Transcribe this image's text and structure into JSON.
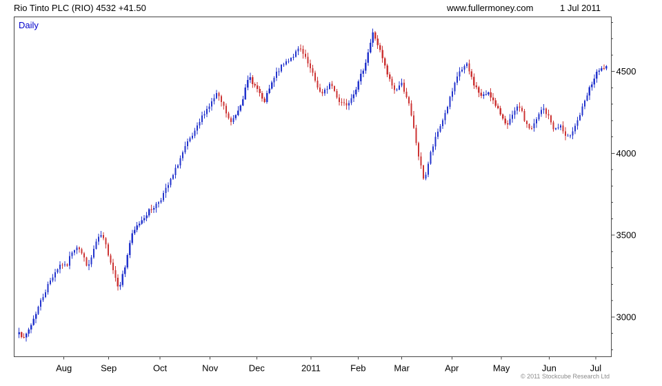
{
  "header": {
    "title": "Rio Tinto PLC (RIO) 4532 +41.50",
    "website": "www.fullermoney.com",
    "date": "1 Jul 2011"
  },
  "chart": {
    "timeframe_label": "Daily",
    "copyright": "© 2011 Stockcube Research Ltd"
  },
  "chart_data": {
    "type": "candlestick",
    "title": "Rio Tinto PLC (RIO) 4532 +41.50",
    "timeframe": "Daily",
    "last_price": 4532,
    "change": "+41.50",
    "grid": false,
    "legend": false,
    "ylim": [
      2780,
      4810
    ],
    "y_ticks": [
      3000,
      3500,
      4000,
      4500
    ],
    "y_minor_step": 100,
    "x_ticks": [
      {
        "label": "Aug",
        "t": 0.078
      },
      {
        "label": "Sep",
        "t": 0.154
      },
      {
        "label": "Oct",
        "t": 0.241
      },
      {
        "label": "Nov",
        "t": 0.326
      },
      {
        "label": "Dec",
        "t": 0.405
      },
      {
        "label": "2011",
        "t": 0.497
      },
      {
        "label": "Feb",
        "t": 0.577
      },
      {
        "label": "Mar",
        "t": 0.651
      },
      {
        "label": "Apr",
        "t": 0.736
      },
      {
        "label": "May",
        "t": 0.82
      },
      {
        "label": "Jun",
        "t": 0.901
      },
      {
        "label": "Jul",
        "t": 0.98
      }
    ],
    "colors": {
      "up": "#2233cc",
      "down": "#cc3333",
      "axis": "#444444"
    },
    "num_candles": 245,
    "price_path_anchors": [
      [
        0.0,
        2920
      ],
      [
        0.008,
        2860
      ],
      [
        0.02,
        2950
      ],
      [
        0.035,
        3080
      ],
      [
        0.05,
        3200
      ],
      [
        0.062,
        3280
      ],
      [
        0.072,
        3330
      ],
      [
        0.08,
        3300
      ],
      [
        0.09,
        3400
      ],
      [
        0.1,
        3440
      ],
      [
        0.11,
        3360
      ],
      [
        0.118,
        3300
      ],
      [
        0.13,
        3450
      ],
      [
        0.14,
        3500
      ],
      [
        0.148,
        3430
      ],
      [
        0.155,
        3350
      ],
      [
        0.163,
        3250
      ],
      [
        0.17,
        3180
      ],
      [
        0.18,
        3300
      ],
      [
        0.19,
        3480
      ],
      [
        0.2,
        3550
      ],
      [
        0.212,
        3610
      ],
      [
        0.222,
        3650
      ],
      [
        0.232,
        3680
      ],
      [
        0.241,
        3720
      ],
      [
        0.252,
        3790
      ],
      [
        0.262,
        3860
      ],
      [
        0.272,
        3950
      ],
      [
        0.285,
        4050
      ],
      [
        0.3,
        4130
      ],
      [
        0.315,
        4250
      ],
      [
        0.326,
        4300
      ],
      [
        0.336,
        4360
      ],
      [
        0.346,
        4300
      ],
      [
        0.36,
        4180
      ],
      [
        0.372,
        4260
      ],
      [
        0.382,
        4350
      ],
      [
        0.392,
        4470
      ],
      [
        0.4,
        4420
      ],
      [
        0.408,
        4380
      ],
      [
        0.416,
        4300
      ],
      [
        0.426,
        4390
      ],
      [
        0.44,
        4500
      ],
      [
        0.455,
        4560
      ],
      [
        0.468,
        4600
      ],
      [
        0.478,
        4640
      ],
      [
        0.49,
        4560
      ],
      [
        0.5,
        4480
      ],
      [
        0.515,
        4350
      ],
      [
        0.53,
        4430
      ],
      [
        0.545,
        4320
      ],
      [
        0.558,
        4300
      ],
      [
        0.568,
        4360
      ],
      [
        0.578,
        4430
      ],
      [
        0.59,
        4560
      ],
      [
        0.603,
        4740
      ],
      [
        0.615,
        4620
      ],
      [
        0.628,
        4470
      ],
      [
        0.64,
        4380
      ],
      [
        0.651,
        4430
      ],
      [
        0.662,
        4330
      ],
      [
        0.672,
        4150
      ],
      [
        0.682,
        3950
      ],
      [
        0.69,
        3830
      ],
      [
        0.7,
        3990
      ],
      [
        0.712,
        4120
      ],
      [
        0.724,
        4230
      ],
      [
        0.736,
        4360
      ],
      [
        0.75,
        4500
      ],
      [
        0.762,
        4540
      ],
      [
        0.775,
        4420
      ],
      [
        0.788,
        4340
      ],
      [
        0.8,
        4380
      ],
      [
        0.812,
        4280
      ],
      [
        0.822,
        4230
      ],
      [
        0.832,
        4170
      ],
      [
        0.842,
        4240
      ],
      [
        0.852,
        4290
      ],
      [
        0.862,
        4190
      ],
      [
        0.872,
        4140
      ],
      [
        0.882,
        4210
      ],
      [
        0.892,
        4280
      ],
      [
        0.902,
        4220
      ],
      [
        0.912,
        4140
      ],
      [
        0.922,
        4170
      ],
      [
        0.932,
        4080
      ],
      [
        0.942,
        4140
      ],
      [
        0.952,
        4210
      ],
      [
        0.962,
        4300
      ],
      [
        0.972,
        4400
      ],
      [
        0.984,
        4490
      ],
      [
        1.0,
        4532
      ]
    ]
  }
}
